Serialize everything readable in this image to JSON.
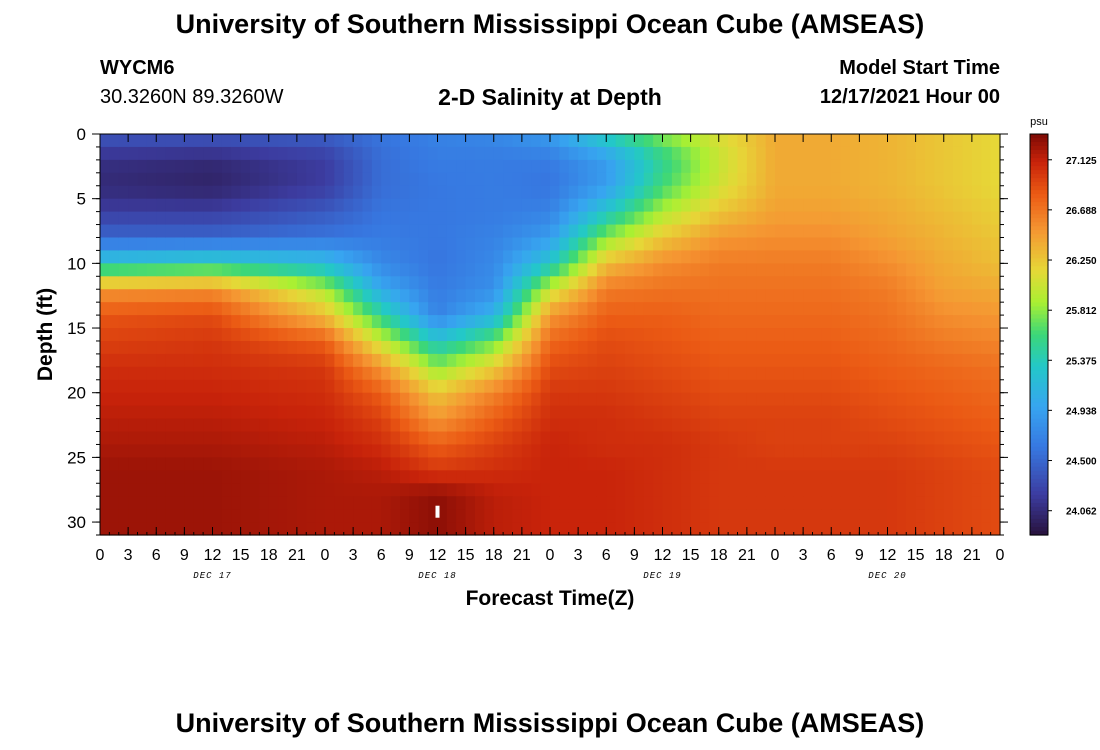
{
  "header": {
    "title": "University of Southern Mississippi Ocean Cube (AMSEAS)",
    "station": "WYCM6",
    "coords": "30.3260N  89.3260W",
    "subtitle": "2-D Salinity at Depth",
    "model_start_label": "Model Start Time",
    "model_start_value": "12/17/2021 Hour 00"
  },
  "footer": {
    "title": "University of Southern Mississippi Ocean Cube (AMSEAS)"
  },
  "chart_data": {
    "type": "heatmap",
    "title": "2-D Salinity at Depth",
    "xlabel": "Forecast Time(Z)",
    "ylabel": "Depth (ft)",
    "x_range_hours": [
      0,
      96
    ],
    "ylim": [
      0,
      31
    ],
    "x_tick_labels": [
      "0",
      "3",
      "6",
      "9",
      "12",
      "15",
      "18",
      "21",
      "0",
      "3",
      "6",
      "9",
      "12",
      "15",
      "18",
      "21",
      "0",
      "3",
      "6",
      "9",
      "12",
      "15",
      "18",
      "21",
      "0",
      "3",
      "6",
      "9",
      "12",
      "15",
      "18",
      "21",
      "0"
    ],
    "day_labels": [
      {
        "label": "DEC 17",
        "hour": 12
      },
      {
        "label": "DEC 18",
        "hour": 36
      },
      {
        "label": "DEC 19",
        "hour": 60
      },
      {
        "label": "DEC 20",
        "hour": 84
      }
    ],
    "y_ticks": [
      0,
      5,
      10,
      15,
      20,
      25,
      30
    ],
    "colorbar": {
      "unit": "psu",
      "min": 23.85,
      "max": 27.35,
      "tick_labels": [
        "27.125",
        "26.688",
        "26.250",
        "25.812",
        "25.375",
        "24.938",
        "24.500",
        "24.062"
      ]
    },
    "salinity_profiles": {
      "depth_ft": [
        0,
        2,
        4,
        6,
        8,
        10,
        12,
        14,
        16,
        18,
        20,
        22,
        24,
        26,
        28,
        31
      ],
      "times_hr": [
        0,
        12,
        24,
        30,
        36,
        42,
        48,
        54,
        60,
        66,
        72,
        78,
        84,
        90,
        96
      ],
      "values_psu": [
        [
          24.4,
          24.1,
          24.05,
          24.2,
          24.5,
          25.3,
          26.5,
          26.85,
          26.95,
          27.05,
          27.1,
          27.15,
          27.2,
          27.25,
          27.25,
          27.25
        ],
        [
          24.4,
          24.05,
          24.0,
          24.2,
          24.5,
          25.4,
          26.55,
          26.9,
          27.0,
          27.05,
          27.1,
          27.15,
          27.2,
          27.25,
          27.25,
          27.25
        ],
        [
          24.45,
          24.2,
          24.2,
          24.4,
          24.6,
          25.2,
          25.9,
          26.3,
          26.8,
          27.0,
          27.05,
          27.1,
          27.15,
          27.2,
          27.2,
          27.2
        ],
        [
          24.6,
          24.55,
          24.55,
          24.6,
          24.65,
          24.75,
          25.0,
          25.5,
          26.0,
          26.5,
          26.8,
          26.95,
          27.05,
          27.15,
          27.2,
          27.2
        ],
        [
          24.7,
          24.65,
          24.62,
          24.62,
          24.62,
          24.6,
          24.65,
          24.7,
          25.3,
          25.8,
          26.25,
          26.5,
          26.8,
          27.0,
          27.3,
          27.3
        ],
        [
          24.75,
          24.65,
          24.65,
          24.65,
          24.7,
          24.75,
          24.8,
          25.1,
          25.7,
          26.2,
          26.6,
          26.8,
          26.95,
          27.05,
          27.15,
          27.15
        ],
        [
          24.9,
          24.65,
          24.6,
          24.7,
          24.9,
          25.3,
          26.0,
          26.5,
          26.75,
          26.9,
          27.0,
          27.05,
          27.1,
          27.1,
          27.1,
          27.1
        ],
        [
          25.4,
          24.9,
          24.9,
          25.3,
          25.8,
          26.3,
          26.65,
          26.8,
          26.9,
          26.95,
          27.0,
          27.05,
          27.05,
          27.1,
          27.1,
          27.1
        ],
        [
          25.8,
          25.5,
          25.6,
          25.9,
          26.25,
          26.55,
          26.7,
          26.8,
          26.85,
          26.9,
          26.95,
          27.0,
          27.05,
          27.05,
          27.05,
          27.05
        ],
        [
          26.1,
          26.0,
          26.05,
          26.25,
          26.5,
          26.65,
          26.7,
          26.75,
          26.8,
          26.85,
          26.9,
          26.95,
          27.0,
          27.0,
          27.0,
          27.0
        ],
        [
          26.4,
          26.4,
          26.4,
          26.45,
          26.55,
          26.65,
          26.7,
          26.75,
          26.8,
          26.85,
          26.9,
          26.95,
          26.95,
          27.0,
          27.0,
          27.0
        ],
        [
          26.4,
          26.4,
          26.4,
          26.45,
          26.55,
          26.65,
          26.7,
          26.75,
          26.8,
          26.85,
          26.9,
          26.95,
          26.95,
          27.0,
          27.0,
          27.0
        ],
        [
          26.35,
          26.35,
          26.35,
          26.4,
          26.45,
          26.55,
          26.65,
          26.7,
          26.75,
          26.8,
          26.85,
          26.9,
          26.95,
          27.0,
          27.0,
          27.0
        ],
        [
          26.25,
          26.25,
          26.25,
          26.3,
          26.35,
          26.4,
          26.45,
          26.55,
          26.65,
          26.75,
          26.8,
          26.85,
          26.9,
          26.95,
          26.95,
          26.95
        ],
        [
          26.15,
          26.15,
          26.15,
          26.2,
          26.25,
          26.3,
          26.4,
          26.5,
          26.6,
          26.7,
          26.75,
          26.8,
          26.85,
          26.9,
          26.9,
          26.9
        ]
      ]
    },
    "marker": {
      "hour": 36,
      "depth_ft": 29.2
    }
  }
}
